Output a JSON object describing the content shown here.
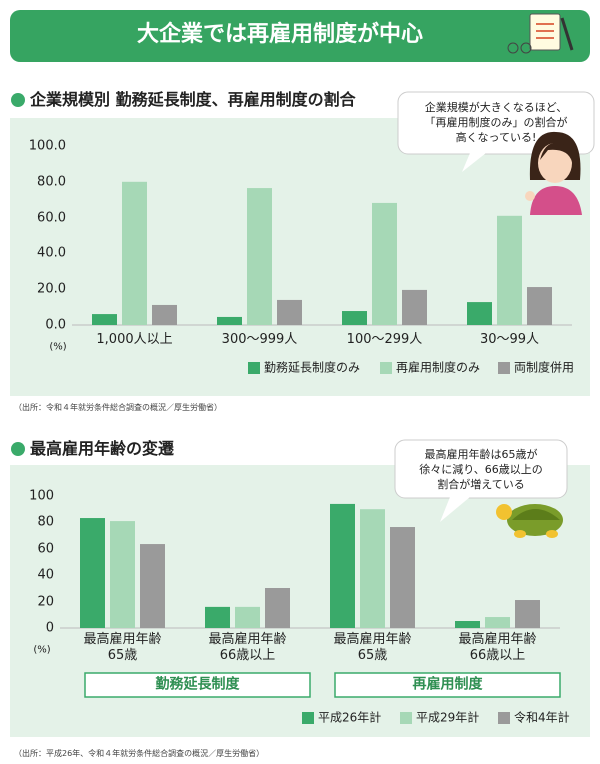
{
  "title": "大企業では再雇用制度が中心",
  "chart_data": [
    {
      "type": "bar",
      "title": "企業規模別 勤務延長制度、再雇用制度の割合",
      "annotation": "企業規模が大きくなるほど、\n「再雇用制度のみ」の割合が\n高くなっている!",
      "source": "（出所：令和４年就労条件総合調査の概況／厚生労働省）",
      "y_label": "(%)",
      "categories": [
        "1,000人以上",
        "300～999人",
        "100～299人",
        "30～99人"
      ],
      "series": [
        {
          "name": "勤務延長制度のみ",
          "color": "#3aaa6a",
          "values": [
            6.1,
            4.5,
            7.8,
            12.8
          ]
        },
        {
          "name": "再雇用制度のみ",
          "color": "#a6d8b6",
          "values": [
            80.0,
            76.5,
            68.2,
            61.0
          ]
        },
        {
          "name": "両制度併用",
          "color": "#9a9a9a",
          "values": [
            11.2,
            14.0,
            19.6,
            21.2
          ]
        }
      ],
      "ylim": [
        0,
        100
      ],
      "yticks": [
        {
          "value": 0,
          "label": "0.0"
        },
        {
          "value": 20,
          "label": "20.0"
        },
        {
          "value": 40,
          "label": "40.0"
        },
        {
          "value": 60,
          "label": "60.0"
        },
        {
          "value": 80,
          "label": "80.0"
        },
        {
          "value": 100,
          "label": "100.0"
        }
      ],
      "grid": false
    },
    {
      "type": "bar",
      "title": "最高雇用年齢の変遷",
      "annotation": "最高雇用年齢は65歳が\n徐々に減り、66歳以上の\n割合が増えている",
      "source": "（出所：平成26年、令和４年就労条件総合調査の概況／厚生労働省）",
      "y_label": "(%)",
      "categories": [
        "最高雇用年齢\n65歳",
        "最高雇用年齢\n66歳以上",
        "最高雇用年齢\n65歳",
        "最高雇用年齢\n66歳以上"
      ],
      "groups": [
        "勤務延長制度",
        "再雇用制度"
      ],
      "series": [
        {
          "name": "平成26年計",
          "color": "#3aaa6a",
          "values": [
            83.3,
            16.0,
            94.0,
            5.3
          ]
        },
        {
          "name": "平成29年計",
          "color": "#a6d8b6",
          "values": [
            81.0,
            16.0,
            90.0,
            8.3
          ]
        },
        {
          "name": "令和4年計",
          "color": "#9a9a9a",
          "values": [
            63.6,
            30.3,
            76.5,
            21.2
          ]
        }
      ],
      "ylim": [
        0,
        100
      ],
      "yticks": [
        0,
        20,
        40,
        60,
        80,
        100
      ],
      "grid": false
    }
  ]
}
